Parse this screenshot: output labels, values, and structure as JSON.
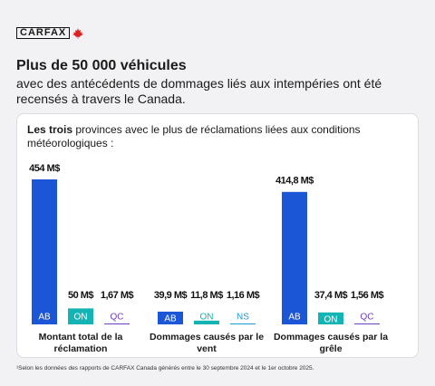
{
  "logo": "CARFAX",
  "title": "Plus de 50 000 véhicules",
  "subtitle": "avec des antécédents de dommages liés aux intempéries ont été recensés à travers le Canada.",
  "chart_data": {
    "type": "bar",
    "heading_bold": "Les trois",
    "heading_rest": "provinces avec le plus de réclamations liées aux conditions météorologiques :",
    "groups": [
      {
        "category": "Montant total de la réclamation",
        "bars": [
          {
            "province": "AB",
            "value": 454,
            "value_label": "454 M$",
            "color": "#1a56d6"
          },
          {
            "province": "ON",
            "value": 50,
            "value_label": "50 M$",
            "color": "#14b4b4"
          },
          {
            "province": "QC",
            "value": 1.67,
            "value_label": "1,67 M$",
            "color": "#6b3fc0"
          }
        ]
      },
      {
        "category": "Dommages causés par le vent",
        "bars": [
          {
            "province": "AB",
            "value": 39.9,
            "value_label": "39,9 M$",
            "color": "#1a56d6"
          },
          {
            "province": "ON",
            "value": 11.8,
            "value_label": "11,8 M$",
            "color": "#14b4b4"
          },
          {
            "province": "NS",
            "value": 1.16,
            "value_label": "1,16 M$",
            "color": "#1a9ad6"
          }
        ]
      },
      {
        "category": "Dommages causés par la grêle",
        "bars": [
          {
            "province": "AB",
            "value": 414.8,
            "value_label": "414,8 M$",
            "color": "#1a56d6"
          },
          {
            "province": "ON",
            "value": 37.4,
            "value_label": "37,4 M$",
            "color": "#14b4b4"
          },
          {
            "province": "QC",
            "value": 1.56,
            "value_label": "1,56 M$",
            "color": "#6b3fc0"
          }
        ]
      }
    ]
  },
  "footnote": "¹Selon les données des rapports de CARFAX Canada générés entre le 30 septembre 2024 et le 1er octobre 2025."
}
